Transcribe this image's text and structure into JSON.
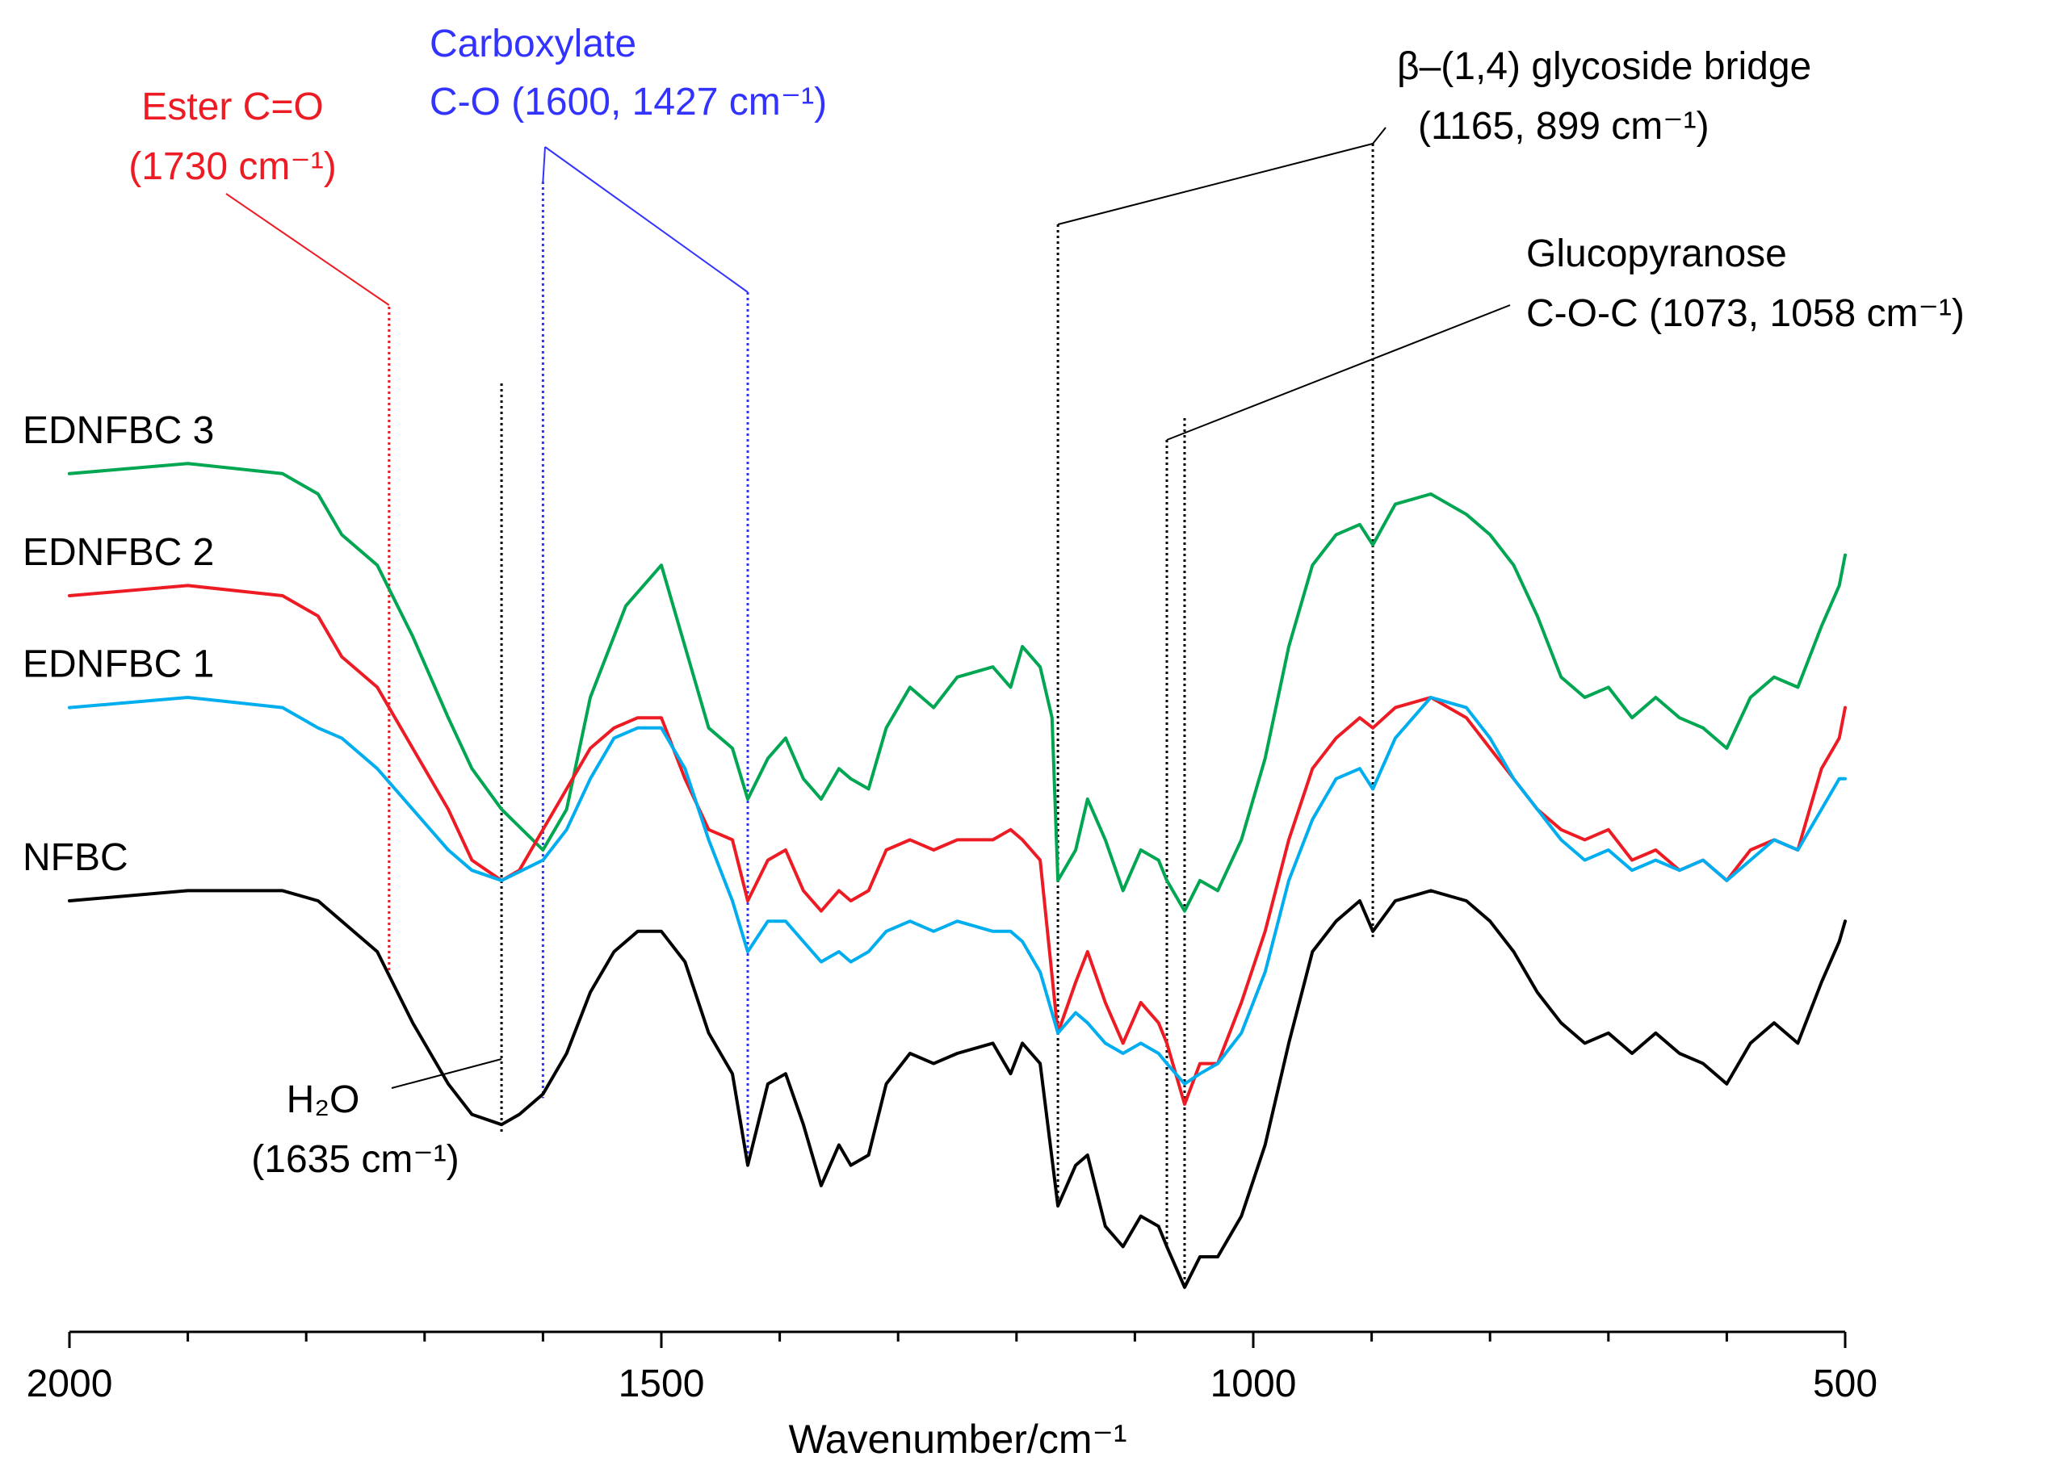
{
  "chart_data": {
    "type": "line",
    "title": "",
    "xlabel": "Wavenumber/cm⁻¹",
    "ylabel": "",
    "xlim": [
      2000,
      500
    ],
    "ylim": [
      0,
      100
    ],
    "x_reversed": true,
    "grid": false,
    "legend": "labels left of each trace",
    "x_ticks": [
      2000,
      1500,
      1000,
      500
    ],
    "x_tick_labels": [
      "2000",
      "1500",
      "1000",
      "500"
    ],
    "series": [
      {
        "name": "EDNFBC 3",
        "color": "#00a651",
        "points": [
          [
            2000,
            82
          ],
          [
            1900,
            83
          ],
          [
            1820,
            82
          ],
          [
            1790,
            80
          ],
          [
            1770,
            76
          ],
          [
            1740,
            73
          ],
          [
            1710,
            66
          ],
          [
            1680,
            58
          ],
          [
            1660,
            53
          ],
          [
            1635,
            49
          ],
          [
            1600,
            45
          ],
          [
            1580,
            49
          ],
          [
            1560,
            60
          ],
          [
            1530,
            69
          ],
          [
            1500,
            73
          ],
          [
            1480,
            65
          ],
          [
            1460,
            57
          ],
          [
            1440,
            55
          ],
          [
            1427,
            50
          ],
          [
            1410,
            54
          ],
          [
            1395,
            56
          ],
          [
            1380,
            52
          ],
          [
            1365,
            50
          ],
          [
            1350,
            53
          ],
          [
            1340,
            52
          ],
          [
            1325,
            51
          ],
          [
            1310,
            57
          ],
          [
            1290,
            61
          ],
          [
            1270,
            59
          ],
          [
            1250,
            62
          ],
          [
            1220,
            63
          ],
          [
            1205,
            61
          ],
          [
            1195,
            65
          ],
          [
            1180,
            63
          ],
          [
            1170,
            58
          ],
          [
            1165,
            42
          ],
          [
            1150,
            45
          ],
          [
            1140,
            50
          ],
          [
            1125,
            46
          ],
          [
            1110,
            41
          ],
          [
            1095,
            45
          ],
          [
            1080,
            44
          ],
          [
            1073,
            42
          ],
          [
            1058,
            39
          ],
          [
            1045,
            42
          ],
          [
            1030,
            41
          ],
          [
            1010,
            46
          ],
          [
            990,
            54
          ],
          [
            970,
            65
          ],
          [
            950,
            73
          ],
          [
            930,
            76
          ],
          [
            910,
            77
          ],
          [
            899,
            75
          ],
          [
            880,
            79
          ],
          [
            850,
            80
          ],
          [
            820,
            78
          ],
          [
            800,
            76
          ],
          [
            780,
            73
          ],
          [
            760,
            68
          ],
          [
            740,
            62
          ],
          [
            720,
            60
          ],
          [
            700,
            61
          ],
          [
            680,
            58
          ],
          [
            660,
            60
          ],
          [
            640,
            58
          ],
          [
            620,
            57
          ],
          [
            600,
            55
          ],
          [
            580,
            60
          ],
          [
            560,
            62
          ],
          [
            540,
            61
          ],
          [
            520,
            67
          ],
          [
            505,
            71
          ],
          [
            500,
            74
          ]
        ]
      },
      {
        "name": "EDNFBC 2",
        "color": "#ed1c24",
        "points": [
          [
            2000,
            70
          ],
          [
            1900,
            71
          ],
          [
            1820,
            70
          ],
          [
            1790,
            68
          ],
          [
            1770,
            64
          ],
          [
            1740,
            61
          ],
          [
            1710,
            55
          ],
          [
            1680,
            49
          ],
          [
            1660,
            44
          ],
          [
            1635,
            42
          ],
          [
            1620,
            43
          ],
          [
            1600,
            47
          ],
          [
            1580,
            51
          ],
          [
            1560,
            55
          ],
          [
            1540,
            57
          ],
          [
            1520,
            58
          ],
          [
            1500,
            58
          ],
          [
            1480,
            52
          ],
          [
            1460,
            47
          ],
          [
            1440,
            46
          ],
          [
            1427,
            40
          ],
          [
            1410,
            44
          ],
          [
            1395,
            45
          ],
          [
            1380,
            41
          ],
          [
            1365,
            39
          ],
          [
            1350,
            41
          ],
          [
            1340,
            40
          ],
          [
            1325,
            41
          ],
          [
            1310,
            45
          ],
          [
            1290,
            46
          ],
          [
            1270,
            45
          ],
          [
            1250,
            46
          ],
          [
            1220,
            46
          ],
          [
            1205,
            47
          ],
          [
            1195,
            46
          ],
          [
            1180,
            44
          ],
          [
            1165,
            27
          ],
          [
            1150,
            32
          ],
          [
            1140,
            35
          ],
          [
            1125,
            30
          ],
          [
            1110,
            26
          ],
          [
            1095,
            30
          ],
          [
            1080,
            28
          ],
          [
            1073,
            26
          ],
          [
            1058,
            20
          ],
          [
            1045,
            24
          ],
          [
            1030,
            24
          ],
          [
            1010,
            30
          ],
          [
            990,
            37
          ],
          [
            970,
            46
          ],
          [
            950,
            53
          ],
          [
            930,
            56
          ],
          [
            910,
            58
          ],
          [
            899,
            57
          ],
          [
            880,
            59
          ],
          [
            850,
            60
          ],
          [
            820,
            58
          ],
          [
            800,
            55
          ],
          [
            780,
            52
          ],
          [
            760,
            49
          ],
          [
            740,
            47
          ],
          [
            720,
            46
          ],
          [
            700,
            47
          ],
          [
            680,
            44
          ],
          [
            660,
            45
          ],
          [
            640,
            43
          ],
          [
            620,
            44
          ],
          [
            600,
            42
          ],
          [
            580,
            45
          ],
          [
            560,
            46
          ],
          [
            540,
            45
          ],
          [
            520,
            53
          ],
          [
            505,
            56
          ],
          [
            500,
            59
          ]
        ]
      },
      {
        "name": "EDNFBC 1",
        "color": "#00aeef",
        "points": [
          [
            2000,
            59
          ],
          [
            1900,
            60
          ],
          [
            1820,
            59
          ],
          [
            1790,
            57
          ],
          [
            1770,
            56
          ],
          [
            1740,
            53
          ],
          [
            1710,
            49
          ],
          [
            1680,
            45
          ],
          [
            1660,
            43
          ],
          [
            1635,
            42
          ],
          [
            1600,
            44
          ],
          [
            1580,
            47
          ],
          [
            1560,
            52
          ],
          [
            1540,
            56
          ],
          [
            1520,
            57
          ],
          [
            1500,
            57
          ],
          [
            1480,
            53
          ],
          [
            1460,
            46
          ],
          [
            1440,
            40
          ],
          [
            1427,
            35
          ],
          [
            1410,
            38
          ],
          [
            1395,
            38
          ],
          [
            1380,
            36
          ],
          [
            1365,
            34
          ],
          [
            1350,
            35
          ],
          [
            1340,
            34
          ],
          [
            1325,
            35
          ],
          [
            1310,
            37
          ],
          [
            1290,
            38
          ],
          [
            1270,
            37
          ],
          [
            1250,
            38
          ],
          [
            1220,
            37
          ],
          [
            1205,
            37
          ],
          [
            1195,
            36
          ],
          [
            1180,
            33
          ],
          [
            1165,
            27
          ],
          [
            1150,
            29
          ],
          [
            1140,
            28
          ],
          [
            1125,
            26
          ],
          [
            1110,
            25
          ],
          [
            1095,
            26
          ],
          [
            1080,
            25
          ],
          [
            1073,
            24
          ],
          [
            1058,
            22
          ],
          [
            1045,
            23
          ],
          [
            1030,
            24
          ],
          [
            1010,
            27
          ],
          [
            990,
            33
          ],
          [
            970,
            42
          ],
          [
            950,
            48
          ],
          [
            930,
            52
          ],
          [
            910,
            53
          ],
          [
            899,
            51
          ],
          [
            880,
            56
          ],
          [
            850,
            60
          ],
          [
            820,
            59
          ],
          [
            800,
            56
          ],
          [
            780,
            52
          ],
          [
            760,
            49
          ],
          [
            740,
            46
          ],
          [
            720,
            44
          ],
          [
            700,
            45
          ],
          [
            680,
            43
          ],
          [
            660,
            44
          ],
          [
            640,
            43
          ],
          [
            620,
            44
          ],
          [
            600,
            42
          ],
          [
            580,
            44
          ],
          [
            560,
            46
          ],
          [
            540,
            45
          ],
          [
            520,
            49
          ],
          [
            505,
            52
          ],
          [
            500,
            52
          ]
        ]
      },
      {
        "name": "NFBC",
        "color": "#000000",
        "points": [
          [
            2000,
            40
          ],
          [
            1900,
            41
          ],
          [
            1820,
            41
          ],
          [
            1790,
            40
          ],
          [
            1770,
            38
          ],
          [
            1740,
            35
          ],
          [
            1710,
            28
          ],
          [
            1680,
            22
          ],
          [
            1660,
            19
          ],
          [
            1635,
            18
          ],
          [
            1620,
            19
          ],
          [
            1600,
            21
          ],
          [
            1580,
            25
          ],
          [
            1560,
            31
          ],
          [
            1540,
            35
          ],
          [
            1520,
            37
          ],
          [
            1500,
            37
          ],
          [
            1480,
            34
          ],
          [
            1460,
            27
          ],
          [
            1440,
            23
          ],
          [
            1427,
            14
          ],
          [
            1410,
            22
          ],
          [
            1395,
            23
          ],
          [
            1380,
            18
          ],
          [
            1365,
            12
          ],
          [
            1350,
            16
          ],
          [
            1340,
            14
          ],
          [
            1325,
            15
          ],
          [
            1310,
            22
          ],
          [
            1290,
            25
          ],
          [
            1270,
            24
          ],
          [
            1250,
            25
          ],
          [
            1220,
            26
          ],
          [
            1205,
            23
          ],
          [
            1195,
            26
          ],
          [
            1180,
            24
          ],
          [
            1165,
            10
          ],
          [
            1150,
            14
          ],
          [
            1140,
            15
          ],
          [
            1125,
            8
          ],
          [
            1110,
            6
          ],
          [
            1095,
            9
          ],
          [
            1080,
            8
          ],
          [
            1073,
            6
          ],
          [
            1058,
            2
          ],
          [
            1045,
            5
          ],
          [
            1030,
            5
          ],
          [
            1010,
            9
          ],
          [
            990,
            16
          ],
          [
            970,
            26
          ],
          [
            950,
            35
          ],
          [
            930,
            38
          ],
          [
            910,
            40
          ],
          [
            899,
            37
          ],
          [
            880,
            40
          ],
          [
            850,
            41
          ],
          [
            820,
            40
          ],
          [
            800,
            38
          ],
          [
            780,
            35
          ],
          [
            760,
            31
          ],
          [
            740,
            28
          ],
          [
            720,
            26
          ],
          [
            700,
            27
          ],
          [
            680,
            25
          ],
          [
            660,
            27
          ],
          [
            640,
            25
          ],
          [
            620,
            24
          ],
          [
            600,
            22
          ],
          [
            580,
            26
          ],
          [
            560,
            28
          ],
          [
            540,
            26
          ],
          [
            520,
            32
          ],
          [
            505,
            36
          ],
          [
            500,
            38
          ]
        ]
      }
    ],
    "annotations": [
      {
        "text": "Ester C=O",
        "text2": "(1730 cm⁻¹)",
        "color": "#ed1c24",
        "x": [
          1730
        ]
      },
      {
        "text": "Carboxylate",
        "text2": "C-O (1600, 1427 cm⁻¹)",
        "color": "#3333ff",
        "x": [
          1600,
          1427
        ]
      },
      {
        "text": "β–(1,4) glycoside bridge",
        "text2": "(1165, 899 cm⁻¹)",
        "color": "#000000",
        "x": [
          1165,
          899
        ]
      },
      {
        "text": "Glucopyranose",
        "text2": "C-O-C (1073, 1058 cm⁻¹)",
        "color": "#000000",
        "x": [
          1073,
          1058
        ]
      },
      {
        "text": "H₂O",
        "text2": "(1635 cm⁻¹)",
        "color": "#000000",
        "x": [
          1635
        ]
      }
    ]
  }
}
